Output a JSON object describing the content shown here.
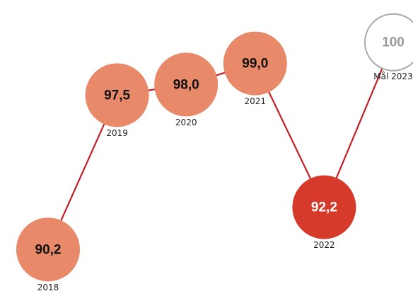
{
  "chart_data": {
    "type": "bubble-line",
    "categories": [
      "2018",
      "2019",
      "2020",
      "2021",
      "2022",
      "Mål 2023"
    ],
    "values": [
      90.2,
      97.5,
      98.0,
      99.0,
      92.2,
      100
    ],
    "value_labels": [
      "90,2",
      "97,5",
      "98,0",
      "99,0",
      "92,2",
      "100"
    ],
    "colors": [
      "#e8896a",
      "#e8896a",
      "#e8896a",
      "#e8896a",
      "#d63a2a",
      "#ffffff"
    ],
    "line_color": "#c41e28",
    "ylim": [
      88,
      102
    ]
  }
}
